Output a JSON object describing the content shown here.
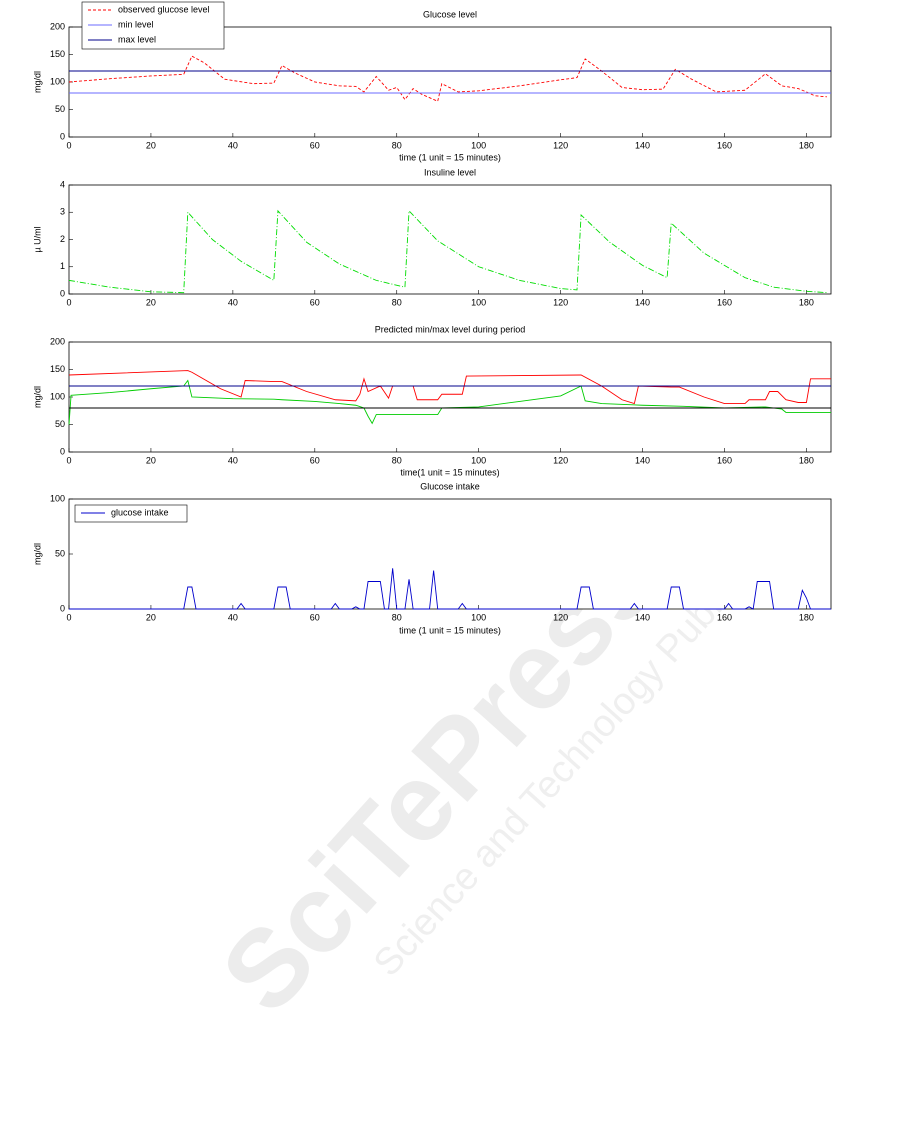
{
  "watermark": "SciTePress",
  "watermark_sub": "Science and Technology Publications",
  "chart_data": [
    {
      "type": "line",
      "title": "Glucose level",
      "xlabel": "time (1 unit = 15 minutes)",
      "ylabel": "mg/dl",
      "xlim": [
        0,
        186
      ],
      "ylim": [
        0,
        200
      ],
      "xticks": [
        0,
        20,
        40,
        60,
        80,
        100,
        120,
        140,
        160,
        180
      ],
      "yticks": [
        0,
        50,
        100,
        150,
        200
      ],
      "legend": "upper left",
      "series": [
        {
          "name": "observed glucose level",
          "color": "#ff0000",
          "linestyle": "dashed",
          "x": [
            0,
            10,
            20,
            28,
            30,
            33,
            38,
            45,
            50,
            52,
            55,
            60,
            66,
            70,
            72,
            75,
            78,
            80,
            82,
            84,
            86,
            90,
            91,
            95,
            100,
            110,
            120,
            124,
            126,
            130,
            135,
            140,
            145,
            148,
            152,
            158,
            165,
            170,
            174,
            178,
            180,
            182,
            185
          ],
          "values": [
            100,
            106,
            111,
            114,
            147,
            135,
            105,
            97,
            98,
            130,
            117,
            100,
            93,
            92,
            82,
            110,
            85,
            90,
            68,
            88,
            78,
            65,
            97,
            82,
            84,
            93,
            104,
            108,
            142,
            120,
            90,
            86,
            87,
            123,
            105,
            82,
            85,
            115,
            93,
            88,
            82,
            75,
            73
          ]
        },
        {
          "name": "min level",
          "color": "#6b6bff",
          "linestyle": "solid",
          "x": [
            0,
            186
          ],
          "values": [
            80,
            80
          ]
        },
        {
          "name": "max level",
          "color": "#00008b",
          "linestyle": "solid",
          "x": [
            0,
            186
          ],
          "values": [
            120,
            120
          ]
        }
      ]
    },
    {
      "type": "line",
      "title": "Insuline level",
      "ylabel": "µ U/ml",
      "xlim": [
        0,
        186
      ],
      "ylim": [
        0,
        4
      ],
      "xticks": [
        0,
        20,
        40,
        60,
        80,
        100,
        120,
        140,
        160,
        180
      ],
      "yticks": [
        0,
        1,
        2,
        3,
        4
      ],
      "series": [
        {
          "color": "#00dd00",
          "linestyle": "dashdot",
          "x": [
            0,
            10,
            20,
            28,
            29,
            35,
            42,
            50,
            51,
            58,
            66,
            75,
            82,
            83,
            90,
            100,
            110,
            120,
            124,
            125,
            132,
            140,
            146,
            147,
            155,
            165,
            172,
            180,
            185
          ],
          "values": [
            0.5,
            0.25,
            0.08,
            0.05,
            3.0,
            2.0,
            1.2,
            0.5,
            3.05,
            1.9,
            1.1,
            0.5,
            0.25,
            3.05,
            1.95,
            1.0,
            0.5,
            0.2,
            0.15,
            2.9,
            1.9,
            1.05,
            0.6,
            2.6,
            1.5,
            0.6,
            0.25,
            0.1,
            0.05
          ]
        }
      ]
    },
    {
      "type": "line",
      "title": "Predicted min/max level during period",
      "xlabel": "time(1 unit = 15 minutes)",
      "ylabel": "mg/dl",
      "xlim": [
        0,
        186
      ],
      "ylim": [
        0,
        200
      ],
      "xticks": [
        0,
        20,
        40,
        60,
        80,
        100,
        120,
        140,
        160,
        180
      ],
      "yticks": [
        0,
        50,
        100,
        150,
        200
      ],
      "series": [
        {
          "color": "#ff0000",
          "linestyle": "solid",
          "x": [
            0,
            29,
            30,
            37,
            42,
            43,
            50,
            52,
            58,
            65,
            70,
            71,
            72,
            73,
            76,
            78,
            79,
            84,
            85,
            90,
            91,
            96,
            97,
            125,
            130,
            135,
            138,
            139,
            147,
            149,
            155,
            160,
            165,
            166,
            170,
            171,
            173,
            175,
            178,
            180,
            181,
            186
          ],
          "values": [
            140,
            148,
            145,
            115,
            100,
            130,
            128,
            128,
            110,
            95,
            93,
            105,
            133,
            110,
            120,
            98,
            120,
            120,
            95,
            95,
            105,
            105,
            138,
            140,
            120,
            95,
            88,
            120,
            118,
            118,
            100,
            88,
            88,
            95,
            95,
            110,
            110,
            95,
            90,
            90,
            133,
            133
          ]
        },
        {
          "color": "#00cc00",
          "linestyle": "solid",
          "x": [
            0,
            0.5,
            10,
            20,
            28,
            29,
            30,
            40,
            50,
            52,
            60,
            66,
            70,
            72,
            73,
            74,
            75,
            78,
            90,
            91,
            100,
            110,
            120,
            125,
            126,
            130,
            140,
            150,
            160,
            170,
            174,
            175,
            186
          ],
          "values": [
            50,
            103,
            108,
            115,
            120,
            130,
            100,
            97,
            96,
            95,
            92,
            88,
            85,
            80,
            65,
            52,
            68,
            68,
            68,
            80,
            82,
            92,
            102,
            120,
            93,
            88,
            85,
            83,
            80,
            82,
            78,
            72,
            72
          ]
        },
        {
          "color": "#000000",
          "linestyle": "solid",
          "x": [
            0,
            186
          ],
          "values": [
            80,
            80
          ]
        },
        {
          "color": "#00008b",
          "linestyle": "solid",
          "x": [
            0,
            186
          ],
          "values": [
            120,
            120
          ]
        }
      ]
    },
    {
      "type": "line",
      "title": "Glucose intake",
      "xlabel": "time (1 unit = 15 minutes)",
      "ylabel": "mg/dl",
      "xlim": [
        0,
        186
      ],
      "ylim": [
        0,
        100
      ],
      "xticks": [
        0,
        20,
        40,
        60,
        80,
        100,
        120,
        140,
        160,
        180
      ],
      "yticks": [
        0,
        50,
        100
      ],
      "legend": "upper left",
      "series": [
        {
          "name": "glucose intake",
          "color": "#0000cc",
          "linestyle": "solid",
          "x": [
            0,
            28,
            29,
            30,
            31,
            41,
            42,
            43,
            50,
            51,
            53,
            54,
            64,
            65,
            66,
            69,
            70,
            71,
            72,
            73,
            76,
            77,
            78,
            79,
            80,
            82,
            83,
            84,
            88,
            89,
            90,
            95,
            96,
            97,
            124,
            125,
            127,
            128,
            137,
            138,
            139,
            146,
            147,
            149,
            150,
            160,
            161,
            162,
            165,
            166,
            167,
            168,
            171,
            172,
            178,
            179,
            180,
            181,
            186
          ],
          "values": [
            0,
            0,
            20,
            20,
            0,
            0,
            5,
            0,
            0,
            20,
            20,
            0,
            0,
            5,
            0,
            0,
            2,
            0,
            0,
            25,
            25,
            0,
            0,
            37,
            0,
            0,
            27,
            0,
            0,
            35,
            0,
            0,
            5,
            0,
            0,
            20,
            20,
            0,
            0,
            5,
            0,
            0,
            20,
            20,
            0,
            0,
            5,
            0,
            0,
            2,
            0,
            25,
            25,
            0,
            0,
            17,
            10,
            0,
            0
          ]
        }
      ]
    }
  ]
}
